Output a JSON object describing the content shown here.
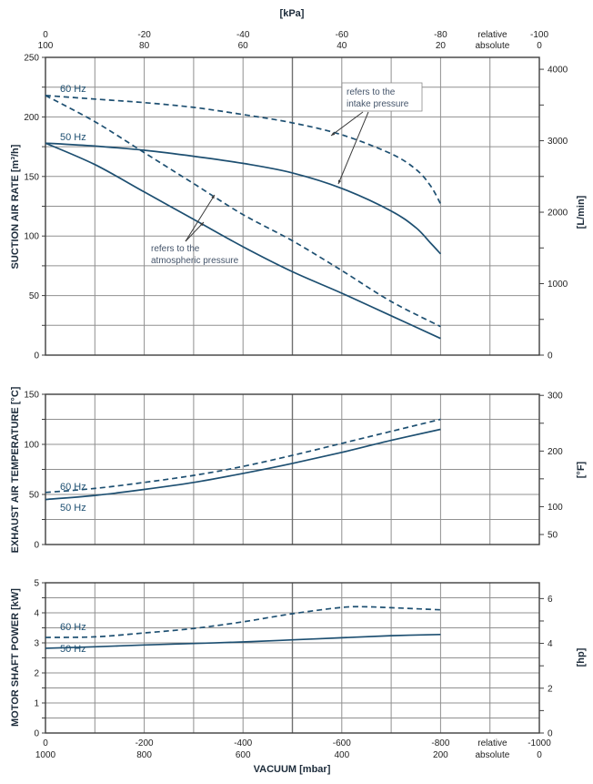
{
  "figure": {
    "top_axis_title": "[kPa]",
    "bottom_axis_title": "VACUUM [mbar]",
    "left_titles": [
      "SUCTION AIR RATE [m³/h]",
      "EXHAUST AIR TEMPERATURE [°C]",
      "MOTOR SHAFT POWER [kW]"
    ],
    "right_titles": [
      "[L/min]",
      "[°F]",
      "[hp]"
    ],
    "colors": {
      "curve": "#1d4f71",
      "grid": "#909090",
      "grid_mid": "#6f6f6f",
      "border": "#3f3f3f",
      "tick_text": "#1f1f1f",
      "annotation_text": "#44546a",
      "arrow": "#3a3a3a"
    }
  },
  "x_axis": {
    "range_mbar": [
      0,
      -1000
    ],
    "grid_step_mbar": 100,
    "top_ticks": [
      {
        "mbar": 0,
        "kpa": "0",
        "abs": "100"
      },
      {
        "mbar": -200,
        "kpa": "-20",
        "abs": "80"
      },
      {
        "mbar": -400,
        "kpa": "-40",
        "abs": "60"
      },
      {
        "mbar": -600,
        "kpa": "-60",
        "abs": "40"
      },
      {
        "mbar": -800,
        "kpa": "-80",
        "abs": "20"
      },
      {
        "mbar": -1000,
        "kpa": "-100",
        "abs": "0"
      }
    ],
    "bottom_ticks": [
      {
        "mbar": 0,
        "rel": "0",
        "abs": "1000"
      },
      {
        "mbar": -200,
        "rel": "-200",
        "abs": "800"
      },
      {
        "mbar": -400,
        "rel": "-400",
        "abs": "600"
      },
      {
        "mbar": -600,
        "rel": "-600",
        "abs": "400"
      },
      {
        "mbar": -800,
        "rel": "-800",
        "abs": "200"
      },
      {
        "mbar": -1000,
        "rel": "-1000",
        "abs": "0"
      }
    ],
    "scale_labels": {
      "mbar": -905,
      "relative": "relative",
      "absolute": "absolute"
    }
  },
  "chart_data": [
    {
      "type": "line",
      "ylabel": "SUCTION AIR RATE [m³/h]",
      "right_label": "[L/min]",
      "xlabel": "VACUUM [mbar]",
      "ylim": [
        0,
        250
      ],
      "y_grid_step": 25,
      "y_label_step": 50,
      "right_ticks": [
        {
          "left_value": 240,
          "label": "4000"
        },
        {
          "left_value": 210
        },
        {
          "left_value": 180,
          "label": "3000"
        },
        {
          "left_value": 150
        },
        {
          "left_value": 120,
          "label": "2000"
        },
        {
          "left_value": 90
        },
        {
          "left_value": 60,
          "label": "1000"
        },
        {
          "left_value": 30
        },
        {
          "left_value": 0,
          "label": "0"
        }
      ],
      "series": [
        {
          "name": "60 Hz refers to the intake pressure",
          "dash": true,
          "points": [
            [
              0,
              218
            ],
            [
              -100,
              215
            ],
            [
              -200,
              212
            ],
            [
              -300,
              208
            ],
            [
              -400,
              202
            ],
            [
              -500,
              195
            ],
            [
              -600,
              185
            ],
            [
              -700,
              169
            ],
            [
              -750,
              156
            ],
            [
              -780,
              142
            ],
            [
              -800,
              127
            ]
          ]
        },
        {
          "name": "50 Hz refers to the intake pressure",
          "dash": false,
          "points": [
            [
              0,
              178
            ],
            [
              -100,
              175.5
            ],
            [
              -200,
              172
            ],
            [
              -300,
              167
            ],
            [
              -400,
              161
            ],
            [
              -500,
              153
            ],
            [
              -600,
              140
            ],
            [
              -700,
              121
            ],
            [
              -750,
              107
            ],
            [
              -780,
              94
            ],
            [
              -800,
              85
            ]
          ]
        },
        {
          "name": "60 Hz refers to the atmospheric pressure",
          "dash": true,
          "points": [
            [
              0,
              218
            ],
            [
              -100,
              196
            ],
            [
              -200,
              170
            ],
            [
              -300,
              144
            ],
            [
              -400,
              118
            ],
            [
              -500,
              96
            ],
            [
              -600,
              71
            ],
            [
              -700,
              45
            ],
            [
              -800,
              24
            ]
          ]
        },
        {
          "name": "50 Hz refers to the atmospheric pressure",
          "dash": false,
          "points": [
            [
              0,
              178
            ],
            [
              -100,
              160
            ],
            [
              -200,
              137
            ],
            [
              -300,
              114
            ],
            [
              -400,
              91
            ],
            [
              -500,
              70
            ],
            [
              -600,
              52
            ],
            [
              -700,
              33
            ],
            [
              -800,
              14
            ]
          ]
        }
      ],
      "curve_labels": [
        {
          "text": "60 Hz",
          "x": 66,
          "y": 101
        },
        {
          "text": "50 Hz",
          "x": 66,
          "y": 154
        }
      ],
      "annotations": [
        {
          "lines": [
            "refers to the",
            "intake pressure"
          ],
          "x": 381,
          "y": 104,
          "box": true,
          "arrows": [
            [
              399,
              123,
              364,
              149
            ],
            [
              405,
              123,
              372,
              202
            ]
          ]
        },
        {
          "lines": [
            "refers to the",
            "atmospheric pressure"
          ],
          "x": 166,
          "y": 276,
          "box": false,
          "arrows": [
            [
              204,
              265,
              236,
              214
            ],
            [
              204,
              265,
              224,
              244
            ]
          ]
        }
      ]
    },
    {
      "type": "line",
      "ylabel": "EXHAUST AIR TEMPERATURE [°C]",
      "right_label": "[°F]",
      "ylim": [
        0,
        150
      ],
      "y_grid_step": 25,
      "y_label_step": 50,
      "right_ticks": [
        {
          "left_value": 148.9,
          "label": "300"
        },
        {
          "left_value": 121.1
        },
        {
          "left_value": 93.3,
          "label": "200"
        },
        {
          "left_value": 65.6
        },
        {
          "left_value": 37.8,
          "label": "100"
        },
        {
          "left_value": 10,
          "label": "50"
        }
      ],
      "series": [
        {
          "name": "60 Hz",
          "dash": true,
          "points": [
            [
              0,
              52
            ],
            [
              -100,
              56
            ],
            [
              -200,
              62
            ],
            [
              -300,
              69
            ],
            [
              -400,
              78
            ],
            [
              -500,
              89
            ],
            [
              -600,
              101
            ],
            [
              -700,
              113
            ],
            [
              -800,
              125
            ]
          ]
        },
        {
          "name": "50 Hz",
          "dash": false,
          "points": [
            [
              0,
              45
            ],
            [
              -100,
              49
            ],
            [
              -200,
              55
            ],
            [
              -300,
              62
            ],
            [
              -400,
              71
            ],
            [
              -500,
              81
            ],
            [
              -600,
              92
            ],
            [
              -700,
              104
            ],
            [
              -800,
              115
            ]
          ]
        }
      ],
      "curve_labels": [
        {
          "text": "60 Hz",
          "x": 66,
          "y": 538
        },
        {
          "text": "50 Hz",
          "x": 66,
          "y": 561
        }
      ],
      "annotations": []
    },
    {
      "type": "line",
      "ylabel": "MOTOR SHAFT POWER [kW]",
      "right_label": "[hp]",
      "ylim": [
        0,
        5
      ],
      "y_grid_step": 0.5,
      "y_label_step": 1,
      "right_ticks": [
        {
          "left_value": 4.474,
          "label": "6"
        },
        {
          "left_value": 3.728
        },
        {
          "left_value": 2.983,
          "label": "4"
        },
        {
          "left_value": 2.237
        },
        {
          "left_value": 1.491,
          "label": "2"
        },
        {
          "left_value": 0.746
        },
        {
          "left_value": 0,
          "label": "0"
        }
      ],
      "series": [
        {
          "name": "60 Hz",
          "dash": true,
          "points": [
            [
              0,
              3.18
            ],
            [
              -100,
              3.2
            ],
            [
              -200,
              3.33
            ],
            [
              -300,
              3.48
            ],
            [
              -400,
              3.7
            ],
            [
              -500,
              3.97
            ],
            [
              -600,
              4.18
            ],
            [
              -650,
              4.2
            ],
            [
              -700,
              4.17
            ],
            [
              -800,
              4.1
            ]
          ]
        },
        {
          "name": "50 Hz",
          "dash": false,
          "points": [
            [
              0,
              2.82
            ],
            [
              -100,
              2.87
            ],
            [
              -200,
              2.93
            ],
            [
              -300,
              2.98
            ],
            [
              -400,
              3.03
            ],
            [
              -500,
              3.1
            ],
            [
              -600,
              3.17
            ],
            [
              -700,
              3.24
            ],
            [
              -800,
              3.28
            ]
          ]
        }
      ],
      "curve_labels": [
        {
          "text": "60 Hz",
          "x": 66,
          "y": 692
        },
        {
          "text": "50 Hz",
          "x": 66,
          "y": 716
        }
      ],
      "annotations": []
    }
  ]
}
